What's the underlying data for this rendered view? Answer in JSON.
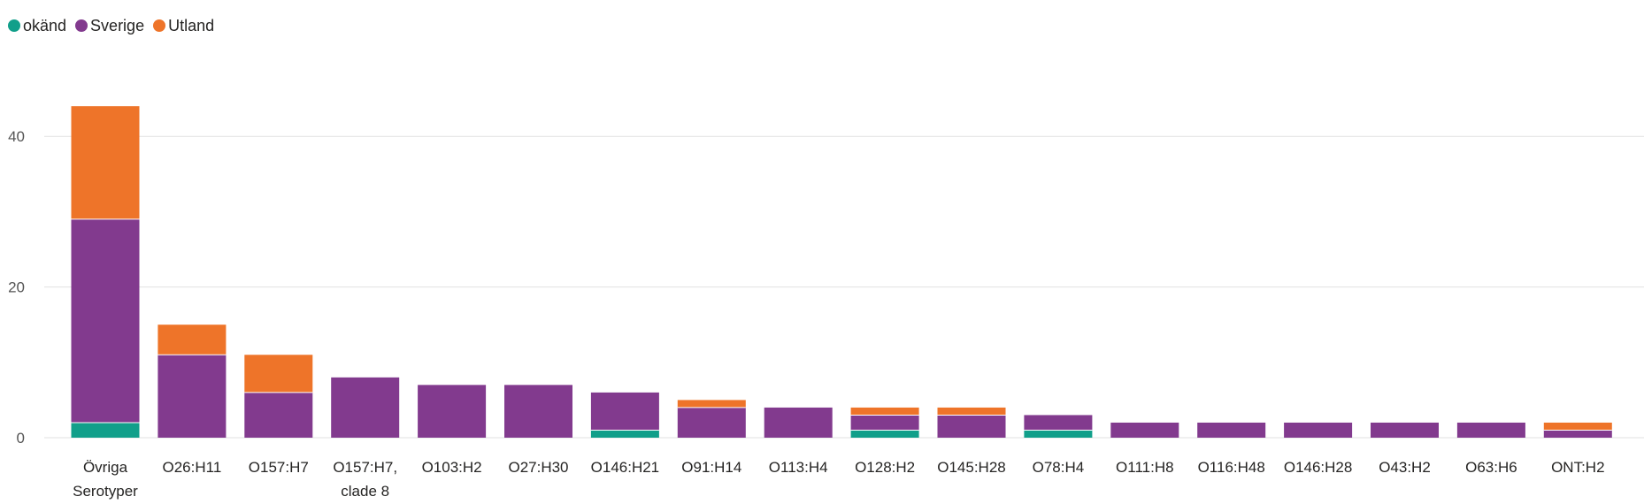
{
  "legend": {
    "items": [
      {
        "label": "okänd",
        "color": "#119f8a"
      },
      {
        "label": "Sverige",
        "color": "#823a8e"
      },
      {
        "label": "Utland",
        "color": "#ee7429"
      }
    ]
  },
  "chart_data": {
    "type": "bar",
    "stacked": true,
    "legend_position": "top-left",
    "grid": true,
    "ylim": [
      0,
      44
    ],
    "yticks": [
      0,
      20,
      40
    ],
    "categories": [
      [
        "Övriga",
        "Serotyper"
      ],
      [
        "O26:H11"
      ],
      [
        "O157:H7"
      ],
      [
        "O157:H7,",
        "clade 8"
      ],
      [
        "O103:H2"
      ],
      [
        "O27:H30"
      ],
      [
        "O146:H21"
      ],
      [
        "O91:H14"
      ],
      [
        "O113:H4"
      ],
      [
        "O128:H2"
      ],
      [
        "O145:H28"
      ],
      [
        "O78:H4"
      ],
      [
        "O111:H8"
      ],
      [
        "O116:H48"
      ],
      [
        "O146:H28"
      ],
      [
        "O43:H2"
      ],
      [
        "O63:H6"
      ],
      [
        "ONT:H2"
      ]
    ],
    "series": [
      {
        "name": "okänd",
        "color": "#119f8a",
        "values": [
          2,
          0,
          0,
          0,
          0,
          0,
          1,
          0,
          0,
          1,
          0,
          1,
          0,
          0,
          0,
          0,
          0,
          0
        ]
      },
      {
        "name": "Sverige",
        "color": "#823a8e",
        "values": [
          27,
          11,
          6,
          8,
          7,
          7,
          5,
          4,
          4,
          2,
          3,
          2,
          2,
          2,
          2,
          2,
          2,
          1
        ]
      },
      {
        "name": "Utland",
        "color": "#ee7429",
        "values": [
          15,
          4,
          5,
          0,
          0,
          0,
          0,
          1,
          0,
          1,
          1,
          0,
          0,
          0,
          0,
          0,
          0,
          1
        ]
      }
    ]
  }
}
